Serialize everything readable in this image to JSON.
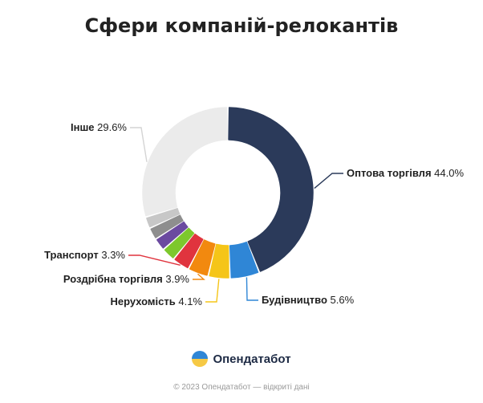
{
  "title": "Сфери компаній-релокантів",
  "brand": {
    "name": "Опендатабот"
  },
  "footer": "© 2023 Опендатабот — відкриті дані",
  "chart_data": {
    "type": "pie",
    "variant": "donut",
    "title": "Сфери компаній-релокантів",
    "slices": [
      {
        "label": "Оптова торгівля",
        "value": 44.0,
        "color": "#2b3a5a",
        "show_label": true
      },
      {
        "label": "Будівництво",
        "value": 5.6,
        "color": "#2f86d6",
        "show_label": true
      },
      {
        "label": "Нерухомість",
        "value": 4.1,
        "color": "#f5c518",
        "show_label": true
      },
      {
        "label": "Роздрібна торгівля",
        "value": 3.9,
        "color": "#f2890f",
        "show_label": true
      },
      {
        "label": "Транспорт",
        "value": 3.3,
        "color": "#e0343e",
        "show_label": true
      },
      {
        "value": 2.6,
        "color": "#7dc82d",
        "show_label": false
      },
      {
        "value": 2.4,
        "color": "#6b4aa0",
        "show_label": false
      },
      {
        "value": 2.3,
        "color": "#8e8e8e",
        "show_label": false
      },
      {
        "value": 2.2,
        "color": "#c7c7c7",
        "show_label": false
      },
      {
        "label": "Інше",
        "value": 29.6,
        "color": "#ebebeb",
        "show_label": true
      }
    ],
    "label_format": "{label} {value}%"
  }
}
